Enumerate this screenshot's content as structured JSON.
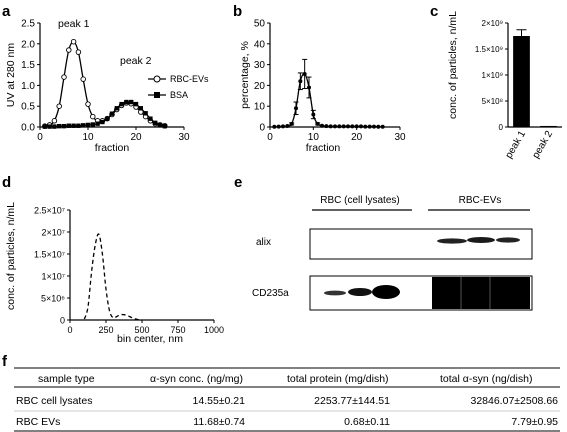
{
  "panels": {
    "a": {
      "letter": "a"
    },
    "b": {
      "letter": "b"
    },
    "c": {
      "letter": "c"
    },
    "d": {
      "letter": "d"
    },
    "e": {
      "letter": "e"
    },
    "f": {
      "letter": "f"
    }
  },
  "chart_data": [
    {
      "id": "a",
      "type": "line",
      "xlabel": "fraction",
      "ylabel": "UV at 280 nm",
      "xlim": [
        0,
        30
      ],
      "ylim": [
        0,
        2.5
      ],
      "xticks": [
        "0",
        "10",
        "20",
        "30"
      ],
      "yticks": [
        "0.0",
        "0.5",
        "1.0",
        "1.5",
        "2.0",
        "2.5"
      ],
      "annotations": [
        "peak 1",
        "peak 2"
      ],
      "legend": "right",
      "series": [
        {
          "name": "RBC-EVs",
          "marker": "open-circle",
          "x": [
            1,
            2,
            3,
            4,
            5,
            6,
            7,
            8,
            9,
            10,
            11,
            12,
            13,
            14,
            15,
            16,
            17,
            18,
            19,
            20,
            21,
            22,
            23,
            24,
            25,
            26
          ],
          "y": [
            0.02,
            0.05,
            0.15,
            0.5,
            1.2,
            1.85,
            2.05,
            1.8,
            1.15,
            0.55,
            0.25,
            0.15,
            0.15,
            0.2,
            0.3,
            0.42,
            0.52,
            0.58,
            0.56,
            0.48,
            0.36,
            0.25,
            0.15,
            0.08,
            0.05,
            0.03
          ]
        },
        {
          "name": "BSA",
          "marker": "filled-square",
          "x": [
            1,
            2,
            3,
            4,
            5,
            6,
            7,
            8,
            9,
            10,
            11,
            12,
            13,
            14,
            15,
            16,
            17,
            18,
            19,
            20,
            21,
            22,
            23,
            24,
            25,
            26
          ],
          "y": [
            0.01,
            0.01,
            0.01,
            0.02,
            0.02,
            0.03,
            0.03,
            0.03,
            0.04,
            0.05,
            0.06,
            0.08,
            0.12,
            0.2,
            0.32,
            0.45,
            0.55,
            0.6,
            0.6,
            0.55,
            0.45,
            0.33,
            0.2,
            0.1,
            0.05,
            0.02
          ]
        }
      ]
    },
    {
      "id": "b",
      "type": "line",
      "xlabel": "fraction",
      "ylabel": "percentage, %",
      "xlim": [
        0,
        30
      ],
      "ylim": [
        0,
        50
      ],
      "xticks": [
        "0",
        "10",
        "20",
        "30"
      ],
      "yticks": [
        "0",
        "10",
        "20",
        "30",
        "40",
        "50"
      ],
      "series": [
        {
          "name": "",
          "x": [
            1,
            2,
            3,
            4,
            5,
            6,
            7,
            8,
            9,
            10,
            11,
            12,
            13,
            14,
            15,
            16,
            17,
            18,
            19,
            20,
            21,
            22,
            23,
            24,
            25,
            26
          ],
          "y": [
            0.1,
            0.2,
            0.3,
            0.5,
            1.5,
            9,
            22,
            25.5,
            19,
            6,
            1.5,
            0.6,
            0.4,
            0.3,
            0.3,
            0.3,
            0.3,
            0.3,
            0.3,
            0.3,
            0.3,
            0.2,
            0.2,
            0.2,
            0.1,
            0.1
          ],
          "err": [
            0,
            0,
            0,
            0,
            0.5,
            3,
            4,
            7,
            5,
            2,
            0.5,
            0,
            0,
            0,
            0,
            0,
            0,
            0,
            0,
            0,
            0,
            0,
            0,
            0,
            0,
            0
          ]
        }
      ]
    },
    {
      "id": "c",
      "type": "bar",
      "ylabel": "conc. of particles, n/mL",
      "ylim": [
        0,
        2000000000.0
      ],
      "yticks": [
        "0",
        "5×10⁸",
        "1×10⁹",
        "1.5×10⁹",
        "2×10⁹"
      ],
      "categories": [
        "peak 1",
        "peak 2"
      ],
      "values": [
        1750000000.0,
        20000000.0
      ],
      "err": [
        120000000.0,
        0
      ]
    },
    {
      "id": "d",
      "type": "line",
      "xlabel": "bin center, nm",
      "ylabel": "conc. of particles, n/mL",
      "xlim": [
        0,
        1000
      ],
      "ylim": [
        0,
        25000000.0
      ],
      "xticks": [
        "0",
        "250",
        "500",
        "750",
        "1000"
      ],
      "yticks": [
        "0",
        "5×10⁶",
        "1×10⁷",
        "1.5×10⁷",
        "2×10⁷",
        "2.5×10⁷"
      ],
      "series": [
        {
          "name": "",
          "style": "dashed",
          "x": [
            100,
            125,
            150,
            175,
            200,
            225,
            250,
            275,
            300,
            325,
            350,
            375,
            400,
            425,
            450,
            475,
            500
          ],
          "y": [
            200000.0,
            3000000.0,
            11000000.0,
            17000000.0,
            19500000.0,
            15000000.0,
            7000000.0,
            2000000.0,
            500000.0,
            800000.0,
            1200000.0,
            1200000.0,
            1000000.0,
            600000.0,
            300000.0,
            100000.0,
            0
          ]
        }
      ]
    }
  ],
  "blot": {
    "group_labels": [
      "RBC (cell lysates)",
      "RBC-EVs"
    ],
    "rows": [
      "alix",
      "CD235a"
    ]
  },
  "table": {
    "headers": [
      "sample type",
      "α-syn conc. (ng/mg)",
      "total protein (mg/dish)",
      "total α-syn (ng/dish)"
    ],
    "rows": [
      [
        "RBC cell lysates",
        "14.55±0.21",
        "2253.77±144.51",
        "32846.07±2508.66"
      ],
      [
        "RBC EVs",
        "11.68±0.74",
        "0.68±0.11",
        "7.79±0.95"
      ]
    ]
  }
}
